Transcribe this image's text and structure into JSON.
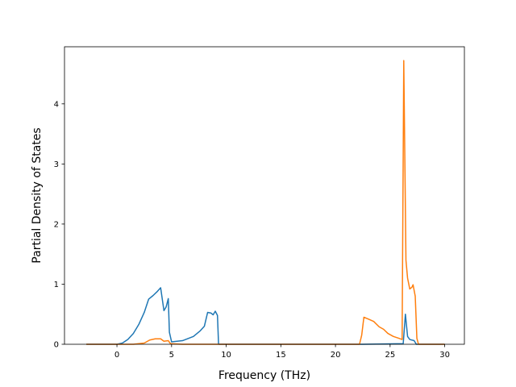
{
  "chart_data": {
    "type": "line",
    "title": "",
    "xlabel": "Frequency (THz)",
    "ylabel": "Partial Density of States",
    "xlim": [
      -4.8,
      31.8
    ],
    "ylim": [
      0,
      4.95
    ],
    "xticks": [
      0,
      5,
      10,
      15,
      20,
      25,
      30
    ],
    "yticks": [
      0,
      1,
      2,
      3,
      4
    ],
    "grid": false,
    "legend": "none",
    "series": [
      {
        "color": "#1f77b4",
        "points": [
          [
            -2.8,
            0
          ],
          [
            0,
            0
          ],
          [
            0.5,
            0.02
          ],
          [
            1,
            0.08
          ],
          [
            1.5,
            0.18
          ],
          [
            2,
            0.33
          ],
          [
            2.5,
            0.53
          ],
          [
            2.9,
            0.75
          ],
          [
            3.3,
            0.81
          ],
          [
            3.7,
            0.88
          ],
          [
            4.0,
            0.94
          ],
          [
            4.3,
            0.56
          ],
          [
            4.5,
            0.62
          ],
          [
            4.7,
            0.76
          ],
          [
            4.8,
            0.2
          ],
          [
            5.0,
            0.04
          ],
          [
            6.0,
            0.06
          ],
          [
            7.0,
            0.13
          ],
          [
            7.6,
            0.22
          ],
          [
            8.0,
            0.3
          ],
          [
            8.3,
            0.53
          ],
          [
            8.6,
            0.52
          ],
          [
            8.8,
            0.49
          ],
          [
            9.0,
            0.55
          ],
          [
            9.2,
            0.48
          ],
          [
            9.3,
            0.0
          ],
          [
            22.5,
            0
          ],
          [
            26.2,
            0.01
          ],
          [
            26.4,
            0.5
          ],
          [
            26.6,
            0.13
          ],
          [
            26.8,
            0.08
          ],
          [
            27.2,
            0.06
          ],
          [
            27.4,
            0.0
          ],
          [
            30.0,
            0
          ]
        ]
      },
      {
        "color": "#ff7f0e",
        "points": [
          [
            -2.8,
            0
          ],
          [
            1.5,
            0
          ],
          [
            2.5,
            0.02
          ],
          [
            3.0,
            0.07
          ],
          [
            3.5,
            0.09
          ],
          [
            4.0,
            0.09
          ],
          [
            4.3,
            0.05
          ],
          [
            4.7,
            0.06
          ],
          [
            4.9,
            0.01
          ],
          [
            6.0,
            0.0
          ],
          [
            8.5,
            0.0
          ],
          [
            9.3,
            0.0
          ],
          [
            22.2,
            0.0
          ],
          [
            22.4,
            0.15
          ],
          [
            22.6,
            0.45
          ],
          [
            23.0,
            0.42
          ],
          [
            23.5,
            0.38
          ],
          [
            24.0,
            0.29
          ],
          [
            24.4,
            0.25
          ],
          [
            24.8,
            0.18
          ],
          [
            25.3,
            0.13
          ],
          [
            25.8,
            0.1
          ],
          [
            26.1,
            0.08
          ],
          [
            26.25,
            4.72
          ],
          [
            26.45,
            1.4
          ],
          [
            26.6,
            1.1
          ],
          [
            26.8,
            0.92
          ],
          [
            27.0,
            0.95
          ],
          [
            27.1,
            0.99
          ],
          [
            27.3,
            0.8
          ],
          [
            27.45,
            0.1
          ],
          [
            27.6,
            0.0
          ],
          [
            30.0,
            0
          ]
        ]
      }
    ]
  }
}
